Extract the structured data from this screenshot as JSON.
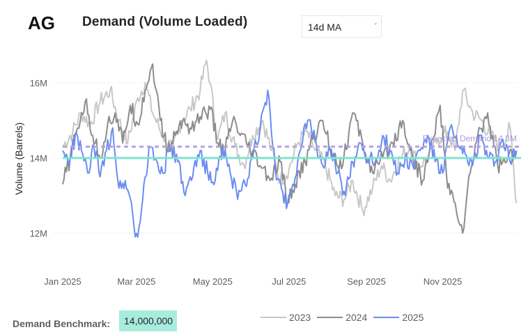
{
  "header": {
    "ticker": "AG",
    "title": "Demand (Volume Loaded)",
    "ma_select": {
      "value": "14d MA"
    }
  },
  "benchmark": {
    "label": "Demand Benchmark:",
    "value": "14,000,000"
  },
  "colors": {
    "y2023": "#c8c8c8",
    "y2024": "#8c8c8c",
    "y2025": "#6a8cf2",
    "benchmark": "#7fe3d0",
    "expected": "#b4a2dc"
  },
  "chart_data": {
    "type": "line",
    "title": "Demand (Volume Loaded)",
    "ylabel": "Volume (Barrels)",
    "xlabel": "",
    "ylim": [
      11.5,
      17.0
    ],
    "y_unit": "M barrels",
    "y_ticks": [
      {
        "value": 12,
        "label": "12M"
      },
      {
        "value": 14,
        "label": "14M"
      },
      {
        "value": 16,
        "label": "16M"
      }
    ],
    "x_domain": [
      0,
      365
    ],
    "x_ticks": [
      {
        "day": 0,
        "label": "Jan 2025"
      },
      {
        "day": 59,
        "label": "Mar 2025"
      },
      {
        "day": 120,
        "label": "May 2025"
      },
      {
        "day": 181,
        "label": "Jul 2025"
      },
      {
        "day": 243,
        "label": "Sep 2025"
      },
      {
        "day": 304,
        "label": "Nov 2025"
      }
    ],
    "grid": "horizontal dotted",
    "legend_position": "bottom-right",
    "reference_lines": [
      {
        "name": "Demand Benchmark",
        "value": 14.0
      },
      {
        "name": "Expected Demand",
        "value": 14.3,
        "label": "Expected Demand 14.3M"
      }
    ],
    "series": [
      {
        "name": "2023",
        "x": [
          0,
          8,
          15,
          22,
          30,
          38,
          45,
          52,
          60,
          66,
          72,
          80,
          88,
          95,
          102,
          110,
          115,
          118,
          124,
          130,
          138,
          145,
          152,
          160,
          167,
          174,
          181,
          188,
          195,
          202,
          210,
          218,
          225,
          232,
          240,
          248,
          255,
          262,
          270,
          278,
          285,
          292,
          300,
          308,
          314,
          320,
          328,
          335,
          342,
          350,
          358,
          363
        ],
        "values": [
          14.3,
          14.7,
          15.2,
          14.9,
          15.5,
          15.8,
          15.0,
          14.4,
          15.6,
          16.0,
          15.2,
          14.6,
          14.2,
          15.0,
          15.3,
          15.8,
          16.6,
          16.0,
          14.5,
          15.2,
          14.3,
          13.8,
          14.6,
          15.0,
          14.2,
          13.4,
          13.7,
          14.4,
          14.7,
          14.2,
          13.8,
          13.0,
          12.9,
          13.4,
          12.6,
          13.2,
          13.8,
          13.4,
          14.0,
          14.3,
          13.8,
          14.0,
          14.5,
          14.7,
          14.2,
          15.8,
          15.2,
          15.0,
          14.6,
          14.3,
          14.8,
          12.8
        ]
      },
      {
        "name": "2024",
        "x": [
          0,
          6,
          12,
          18,
          24,
          30,
          36,
          42,
          48,
          54,
          60,
          66,
          72,
          78,
          84,
          90,
          96,
          102,
          110,
          118,
          124,
          130,
          136,
          142,
          150,
          158,
          166,
          174,
          180,
          186,
          194,
          200,
          208,
          216,
          224,
          232,
          240,
          248,
          256,
          264,
          272,
          280,
          288,
          296,
          302,
          308,
          314,
          320,
          326,
          332,
          340,
          348,
          356,
          363
        ],
        "values": [
          13.3,
          14.0,
          14.8,
          15.5,
          14.6,
          14.0,
          14.9,
          15.2,
          14.4,
          15.4,
          14.9,
          15.8,
          16.5,
          15.0,
          14.2,
          14.6,
          15.0,
          14.8,
          15.1,
          15.3,
          14.4,
          14.2,
          15.0,
          14.6,
          14.2,
          13.8,
          13.4,
          13.9,
          12.8,
          13.3,
          13.9,
          14.5,
          15.0,
          14.1,
          13.8,
          15.2,
          14.4,
          13.6,
          14.0,
          14.4,
          15.0,
          14.0,
          13.4,
          14.5,
          15.4,
          13.2,
          12.8,
          12.0,
          13.6,
          14.6,
          15.2,
          13.8,
          14.0,
          14.1
        ]
      },
      {
        "name": "2025",
        "x": [
          0,
          5,
          10,
          15,
          20,
          25,
          30,
          35,
          40,
          45,
          50,
          55,
          58,
          62,
          66,
          70,
          74,
          80,
          86,
          92,
          98,
          104,
          110,
          116,
          122,
          128,
          134,
          140,
          146,
          152,
          158,
          164,
          170,
          176,
          180,
          184,
          190,
          196,
          202,
          208,
          214,
          220,
          226,
          232,
          238,
          244,
          250,
          256,
          262,
          268,
          274,
          280,
          286,
          292,
          298,
          304,
          310,
          316,
          322,
          328,
          334,
          340,
          346,
          352,
          358,
          363
        ],
        "values": [
          14.2,
          13.8,
          14.6,
          14.2,
          13.6,
          14.3,
          13.5,
          14.2,
          14.8,
          13.2,
          13.4,
          12.8,
          11.9,
          12.3,
          13.5,
          14.3,
          14.0,
          13.6,
          14.3,
          13.9,
          13.0,
          13.5,
          14.2,
          13.6,
          13.4,
          14.3,
          13.6,
          12.9,
          13.3,
          14.0,
          14.8,
          15.8,
          13.7,
          13.1,
          12.8,
          13.3,
          14.2,
          15.0,
          14.5,
          13.8,
          14.2,
          13.6,
          13.0,
          13.9,
          14.4,
          14.0,
          13.9,
          14.6,
          14.2,
          13.6,
          14.0,
          13.8,
          14.2,
          14.6,
          13.9,
          13.6,
          14.8,
          14.3,
          14.1,
          13.8,
          14.6,
          14.0,
          13.9,
          14.5,
          13.9,
          14.2
        ]
      }
    ]
  }
}
